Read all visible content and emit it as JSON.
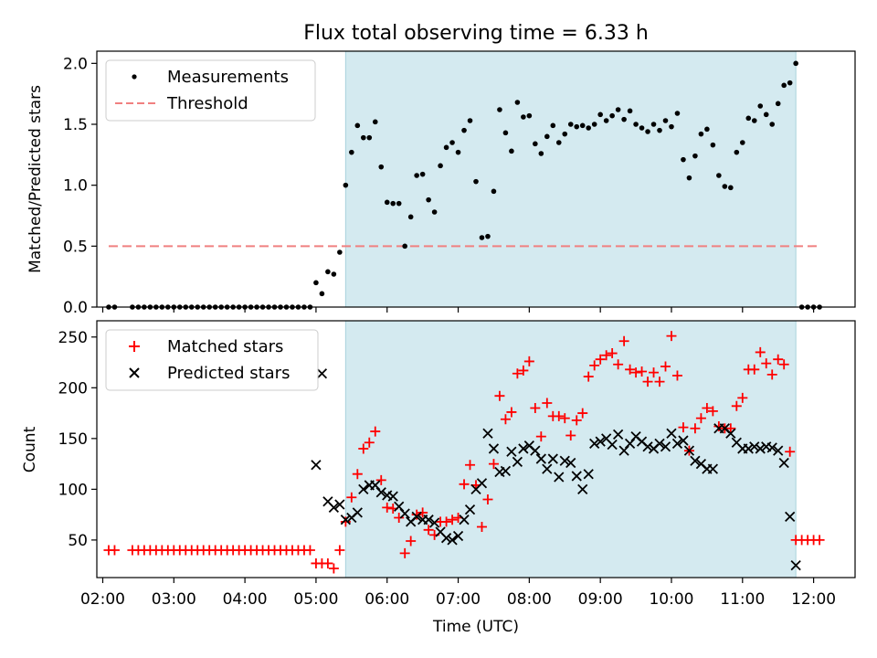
{
  "chart_data": [
    {
      "type": "scatter",
      "title": "Flux total observing time = 6.33 h",
      "xlabel": "",
      "ylabel": "Matched/Predicted stars",
      "xlim": [
        "01:55",
        "12:35"
      ],
      "ylim": [
        0,
        2.1
      ],
      "yticks": [
        0.0,
        0.5,
        1.0,
        1.5,
        2.0
      ],
      "ytick_labels": [
        "0.0",
        "0.5",
        "1.0",
        "1.5",
        "2.0"
      ],
      "grid": false,
      "legend": "top-left",
      "legend_entries": [
        "Measurements",
        "Threshold"
      ],
      "shaded_region": {
        "start": "05:25",
        "end": "11:45",
        "color": "#d4eaf0"
      },
      "threshold": {
        "y": 0.5,
        "x": [
          "02:05",
          "12:05"
        ],
        "color": "#f08080"
      },
      "series": [
        {
          "name": "Measurements",
          "color": "#000000",
          "marker": "dot",
          "x": [
            "02:05",
            "02:10",
            "02:25",
            "02:30",
            "02:35",
            "02:40",
            "02:45",
            "02:50",
            "02:55",
            "03:00",
            "03:05",
            "03:10",
            "03:15",
            "03:20",
            "03:25",
            "03:30",
            "03:35",
            "03:40",
            "03:45",
            "03:50",
            "03:55",
            "04:00",
            "04:05",
            "04:10",
            "04:15",
            "04:20",
            "04:25",
            "04:30",
            "04:35",
            "04:40",
            "04:45",
            "04:50",
            "04:55",
            "05:00",
            "05:05",
            "05:10",
            "05:15",
            "05:20",
            "05:25",
            "05:30",
            "05:35",
            "05:40",
            "05:45",
            "05:50",
            "05:55",
            "06:00",
            "06:05",
            "06:10",
            "06:15",
            "06:20",
            "06:25",
            "06:30",
            "06:35",
            "06:40",
            "06:45",
            "06:50",
            "06:55",
            "07:00",
            "07:05",
            "07:10",
            "07:15",
            "07:20",
            "07:25",
            "07:30",
            "07:35",
            "07:40",
            "07:45",
            "07:50",
            "07:55",
            "08:00",
            "08:05",
            "08:10",
            "08:15",
            "08:20",
            "08:25",
            "08:30",
            "08:35",
            "08:40",
            "08:45",
            "08:50",
            "08:55",
            "09:00",
            "09:05",
            "09:10",
            "09:15",
            "09:20",
            "09:25",
            "09:30",
            "09:35",
            "09:40",
            "09:45",
            "09:50",
            "09:55",
            "10:00",
            "10:05",
            "10:10",
            "10:15",
            "10:20",
            "10:25",
            "10:30",
            "10:35",
            "10:40",
            "10:45",
            "10:50",
            "10:55",
            "11:00",
            "11:05",
            "11:10",
            "11:15",
            "11:20",
            "11:25",
            "11:30",
            "11:35",
            "11:40",
            "11:45",
            "11:50",
            "11:55",
            "12:00",
            "12:05"
          ],
          "y": [
            0,
            0,
            0,
            0,
            0,
            0,
            0,
            0,
            0,
            0,
            0,
            0,
            0,
            0,
            0,
            0,
            0,
            0,
            0,
            0,
            0,
            0,
            0,
            0,
            0,
            0,
            0,
            0,
            0,
            0,
            0,
            0,
            0,
            0.2,
            0.11,
            0.29,
            0.27,
            0.45,
            1.0,
            1.27,
            1.49,
            1.39,
            1.39,
            1.52,
            1.15,
            0.86,
            0.85,
            0.85,
            0.5,
            0.74,
            1.08,
            1.09,
            0.88,
            0.78,
            1.16,
            1.31,
            1.35,
            1.27,
            1.45,
            1.53,
            1.03,
            0.57,
            0.58,
            0.95,
            1.62,
            1.43,
            1.28,
            1.68,
            1.56,
            1.57,
            1.34,
            1.26,
            1.4,
            1.49,
            1.35,
            1.42,
            1.5,
            1.48,
            1.49,
            1.47,
            1.5,
            1.58,
            1.53,
            1.57,
            1.62,
            1.54,
            1.61,
            1.5,
            1.47,
            1.44,
            1.5,
            1.45,
            1.53,
            1.48,
            1.59,
            1.21,
            1.06,
            1.24,
            1.42,
            1.46,
            1.33,
            1.08,
            0.99,
            0.98,
            1.27,
            1.35,
            1.55,
            1.53,
            1.65,
            1.58,
            1.5,
            1.67,
            1.82,
            1.84,
            2.0,
            0,
            0,
            0,
            0
          ]
        }
      ]
    },
    {
      "type": "scatter",
      "title": "",
      "xlabel": "Time (UTC)",
      "ylabel": "Count",
      "xlim": [
        "01:55",
        "12:35"
      ],
      "ylim": [
        13,
        266
      ],
      "yticks": [
        50,
        100,
        150,
        200,
        250
      ],
      "ytick_labels": [
        "50",
        "100",
        "150",
        "200",
        "250"
      ],
      "xticks": [
        "02:00",
        "03:00",
        "04:00",
        "05:00",
        "06:00",
        "07:00",
        "08:00",
        "09:00",
        "10:00",
        "11:00",
        "12:00"
      ],
      "grid": false,
      "legend": "top-left",
      "legend_entries": [
        "Matched stars",
        "Predicted stars"
      ],
      "shaded_region": {
        "start": "05:25",
        "end": "11:45",
        "color": "#d4eaf0"
      },
      "series": [
        {
          "name": "Matched stars",
          "color": "#ff0000",
          "marker": "plus",
          "x": [
            "02:05",
            "02:10",
            "02:25",
            "02:30",
            "02:35",
            "02:40",
            "02:45",
            "02:50",
            "02:55",
            "03:00",
            "03:05",
            "03:10",
            "03:15",
            "03:20",
            "03:25",
            "03:30",
            "03:35",
            "03:40",
            "03:45",
            "03:50",
            "03:55",
            "04:00",
            "04:05",
            "04:10",
            "04:15",
            "04:20",
            "04:25",
            "04:30",
            "04:35",
            "04:40",
            "04:45",
            "04:50",
            "04:55",
            "05:00",
            "05:05",
            "05:10",
            "05:15",
            "05:20",
            "05:25",
            "05:30",
            "05:35",
            "05:40",
            "05:45",
            "05:50",
            "05:55",
            "06:00",
            "06:05",
            "06:10",
            "06:15",
            "06:20",
            "06:25",
            "06:30",
            "06:35",
            "06:40",
            "06:45",
            "06:50",
            "06:55",
            "07:00",
            "07:05",
            "07:10",
            "07:15",
            "07:20",
            "07:25",
            "07:30",
            "07:35",
            "07:40",
            "07:45",
            "07:50",
            "07:55",
            "08:00",
            "08:05",
            "08:10",
            "08:15",
            "08:20",
            "08:25",
            "08:30",
            "08:35",
            "08:40",
            "08:45",
            "08:50",
            "08:55",
            "09:00",
            "09:05",
            "09:10",
            "09:15",
            "09:20",
            "09:25",
            "09:30",
            "09:35",
            "09:40",
            "09:45",
            "09:50",
            "09:55",
            "10:00",
            "10:05",
            "10:10",
            "10:15",
            "10:20",
            "10:25",
            "10:30",
            "10:35",
            "10:40",
            "10:45",
            "10:50",
            "10:55",
            "11:00",
            "11:05",
            "11:10",
            "11:15",
            "11:20",
            "11:25",
            "11:30",
            "11:35",
            "11:40",
            "11:45",
            "11:50",
            "11:55",
            "12:00",
            "12:05"
          ],
          "y": [
            40,
            40,
            40,
            40,
            40,
            40,
            40,
            40,
            40,
            40,
            40,
            40,
            40,
            40,
            40,
            40,
            40,
            40,
            40,
            40,
            40,
            40,
            40,
            40,
            40,
            40,
            40,
            40,
            40,
            40,
            40,
            40,
            40,
            27,
            27,
            27,
            22,
            40,
            68,
            92,
            115,
            140,
            146,
            157,
            109,
            82,
            81,
            72,
            37,
            49,
            75,
            77,
            60,
            55,
            68,
            68,
            70,
            72,
            105,
            124,
            104,
            63,
            90,
            125,
            192,
            169,
            176,
            214,
            217,
            226,
            180,
            152,
            185,
            172,
            172,
            170,
            153,
            168,
            175,
            211,
            222,
            228,
            232,
            234,
            223,
            246,
            218,
            215,
            216,
            206,
            215,
            206,
            221,
            251,
            212,
            161,
            138,
            160,
            170,
            180,
            177,
            162,
            160,
            160,
            182,
            190,
            218,
            218,
            235,
            224,
            213,
            228,
            223,
            137,
            50,
            50,
            50,
            50,
            50
          ]
        },
        {
          "name": "Predicted stars",
          "color": "#000000",
          "marker": "x",
          "x": [
            "05:00",
            "05:05",
            "05:10",
            "05:15",
            "05:20",
            "05:25",
            "05:30",
            "05:35",
            "05:40",
            "05:45",
            "05:50",
            "05:55",
            "06:00",
            "06:05",
            "06:10",
            "06:15",
            "06:20",
            "06:25",
            "06:30",
            "06:35",
            "06:40",
            "06:45",
            "06:50",
            "06:55",
            "07:00",
            "07:05",
            "07:10",
            "07:15",
            "07:20",
            "07:25",
            "07:30",
            "07:35",
            "07:40",
            "07:45",
            "07:50",
            "07:55",
            "08:00",
            "08:05",
            "08:10",
            "08:15",
            "08:20",
            "08:25",
            "08:30",
            "08:35",
            "08:40",
            "08:45",
            "08:50",
            "08:55",
            "09:00",
            "09:05",
            "09:10",
            "09:15",
            "09:20",
            "09:25",
            "09:30",
            "09:35",
            "09:40",
            "09:45",
            "09:50",
            "09:55",
            "10:00",
            "10:05",
            "10:10",
            "10:15",
            "10:20",
            "10:25",
            "10:30",
            "10:35",
            "10:40",
            "10:45",
            "10:50",
            "10:55",
            "11:00",
            "11:05",
            "11:10",
            "11:15",
            "11:20",
            "11:25",
            "11:30",
            "11:35",
            "11:40",
            "11:45"
          ],
          "y": [
            124,
            214,
            88,
            82,
            85,
            70,
            72,
            77,
            100,
            104,
            104,
            97,
            94,
            93,
            83,
            76,
            68,
            73,
            70,
            70,
            67,
            58,
            52,
            50,
            54,
            70,
            80,
            100,
            106,
            155,
            140,
            117,
            118,
            137,
            127,
            140,
            143,
            138,
            130,
            120,
            130,
            112,
            128,
            126,
            113,
            100,
            115,
            145,
            147,
            150,
            144,
            154,
            138,
            145,
            152,
            147,
            142,
            140,
            145,
            142,
            155,
            145,
            148,
            138,
            128,
            125,
            120,
            120,
            160,
            160,
            155,
            146,
            140,
            140,
            142,
            140,
            142,
            141,
            138,
            126,
            73,
            25
          ]
        }
      ]
    }
  ]
}
